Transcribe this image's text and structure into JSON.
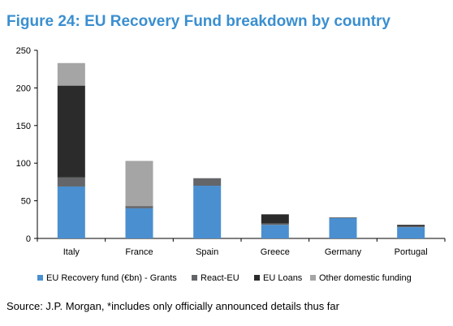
{
  "title": "Figure 24: EU Recovery Fund breakdown by country",
  "source": "Source: J.P. Morgan, *includes only officially announced details thus far",
  "chart_data": {
    "type": "bar",
    "stacked": true,
    "categories": [
      "Italy",
      "France",
      "Spain",
      "Greece",
      "Germany",
      "Portugal"
    ],
    "series": [
      {
        "name": "EU Recovery fund (€bn) -  Grants",
        "color": "#4a8fd0",
        "values": [
          69,
          40,
          70,
          18,
          27,
          15
        ]
      },
      {
        "name": "React-EU",
        "color": "#636569",
        "values": [
          12,
          3,
          10,
          2,
          1,
          1
        ]
      },
      {
        "name": "EU Loans",
        "color": "#2b2b2b",
        "values": [
          122,
          0,
          0,
          12,
          0,
          2
        ]
      },
      {
        "name": "Other domestic funding",
        "color": "#a5a5a5",
        "values": [
          30,
          60,
          0,
          0,
          0,
          0
        ]
      }
    ],
    "ylim": [
      0,
      250
    ],
    "yticks": [
      0,
      50,
      100,
      150,
      200,
      250
    ],
    "legend_position": "bottom",
    "grid": false
  }
}
